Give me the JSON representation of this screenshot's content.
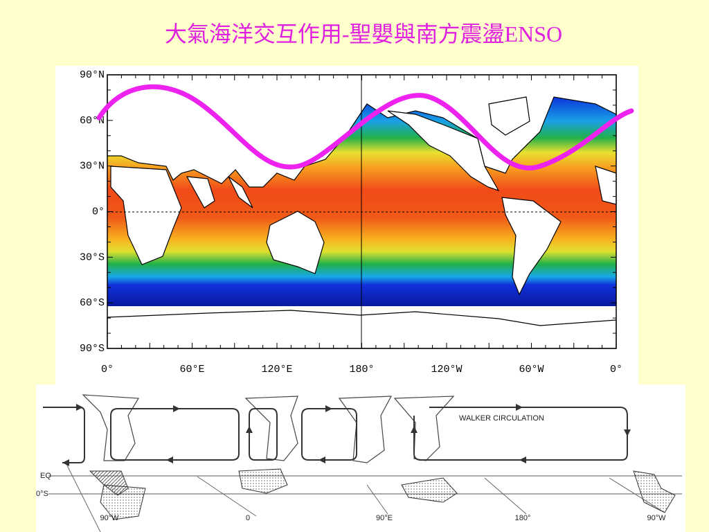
{
  "title": "大氣海洋交互作用-聖嬰與南方震盪ENSO",
  "map": {
    "lat_labels": [
      "90°N",
      "60°N",
      "30°N",
      "0°",
      "30°S",
      "60°S",
      "90°S"
    ],
    "lon_labels": [
      "0°",
      "60°E",
      "120°E",
      "180°",
      "120°W",
      "60°W",
      "0°"
    ]
  },
  "walker": {
    "label": "WALKER CIRCULATION",
    "lat_labels": [
      "EQ",
      "0°S"
    ],
    "lon_labels": [
      "90°W",
      "0",
      "90°E",
      "180°",
      "90°W"
    ]
  }
}
